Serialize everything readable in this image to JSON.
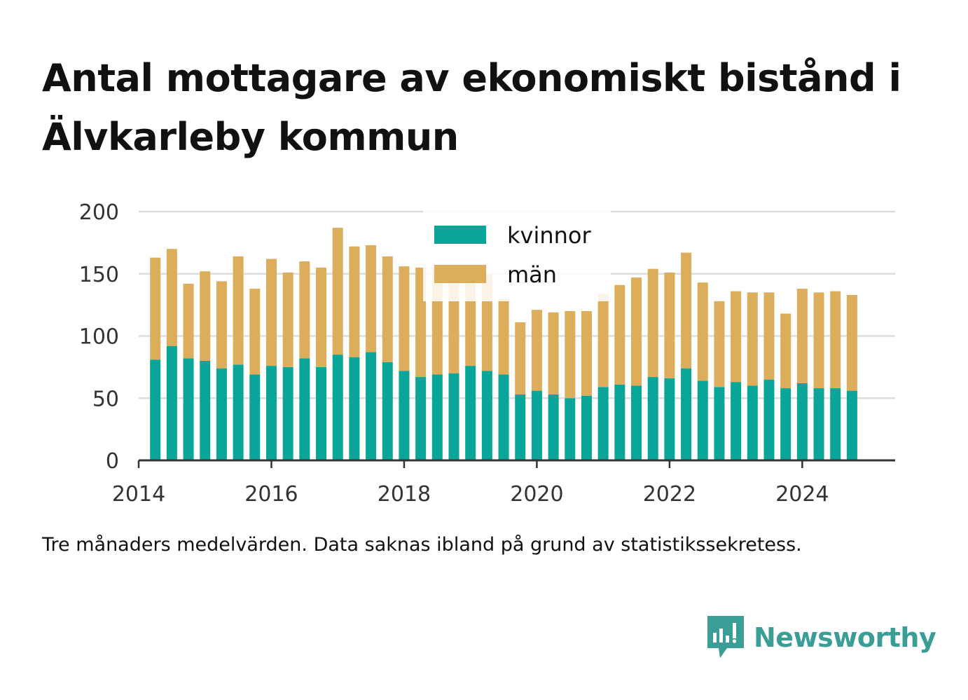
{
  "title": "Antal mottagare av ekonomiskt bistånd i Älvkarleby kommun",
  "note": "Tre månaders medelvärden. Data saknas ibland på grund av statistikssekretess.",
  "brand": {
    "name": "Newsworthy",
    "color": "#3a9d96",
    "icon": "bar-chart-speech-bubble-icon"
  },
  "colors": {
    "kvinnor": "#08a598",
    "man": "#dcae5c",
    "grid": "#dddddd",
    "axis": "#333333"
  },
  "chart_data": {
    "type": "bar",
    "stacked": true,
    "title": "Antal mottagare av ekonomiskt bistånd i Älvkarleby kommun",
    "xlabel": "",
    "ylabel": "",
    "ylim": [
      0,
      200
    ],
    "yticks": [
      0,
      50,
      100,
      150,
      200
    ],
    "xticks": [
      "2014",
      "2016",
      "2018",
      "2020",
      "2022",
      "2024"
    ],
    "legend_position": "top-center",
    "x_start": 2014.0,
    "x_end": 2025.4,
    "categories": [
      "2014-05",
      "2014-08",
      "2014-11",
      "2015-02",
      "2015-05",
      "2015-08",
      "2015-11",
      "2016-02",
      "2016-05",
      "2016-08",
      "2016-11",
      "2017-02",
      "2017-05",
      "2017-08",
      "2017-11",
      "2018-02",
      "2018-05",
      "2018-08",
      "2018-11",
      "2019-02",
      "2019-05",
      "2019-08",
      "2019-11",
      "2020-02",
      "2020-05",
      "2020-08",
      "2020-11",
      "2021-02",
      "2021-05",
      "2021-08",
      "2021-11",
      "2022-02",
      "2022-05",
      "2022-08",
      "2022-11",
      "2023-02",
      "2023-05",
      "2023-08",
      "2023-11",
      "2024-02",
      "2024-05",
      "2024-08",
      "2024-11"
    ],
    "x": [
      2014.25,
      2014.5,
      2014.75,
      2015.0,
      2015.25,
      2015.5,
      2015.75,
      2016.0,
      2016.25,
      2016.5,
      2016.75,
      2017.0,
      2017.25,
      2017.5,
      2017.75,
      2018.0,
      2018.25,
      2018.5,
      2018.75,
      2019.0,
      2019.25,
      2019.5,
      2019.75,
      2020.0,
      2020.25,
      2020.5,
      2020.75,
      2021.0,
      2021.25,
      2021.5,
      2021.75,
      2022.0,
      2022.25,
      2022.5,
      2022.75,
      2023.0,
      2023.25,
      2023.5,
      2023.75,
      2024.0,
      2024.25,
      2024.5,
      2024.75
    ],
    "series": [
      {
        "name": "kvinnor",
        "values": [
          81,
          92,
          82,
          80,
          74,
          77,
          69,
          76,
          75,
          82,
          75,
          85,
          83,
          87,
          79,
          72,
          67,
          69,
          70,
          76,
          72,
          69,
          53,
          56,
          53,
          50,
          52,
          59,
          61,
          60,
          67,
          66,
          74,
          64,
          59,
          63,
          60,
          65,
          58,
          62,
          58,
          58,
          56
        ]
      },
      {
        "name": "män",
        "values": [
          82,
          78,
          60,
          72,
          70,
          87,
          69,
          86,
          76,
          78,
          80,
          102,
          89,
          86,
          85,
          84,
          88,
          86,
          86,
          81,
          78,
          61,
          58,
          65,
          66,
          70,
          68,
          75,
          80,
          87,
          87,
          85,
          93,
          79,
          69,
          73,
          75,
          70,
          60,
          76,
          77,
          78,
          77
        ]
      }
    ]
  }
}
